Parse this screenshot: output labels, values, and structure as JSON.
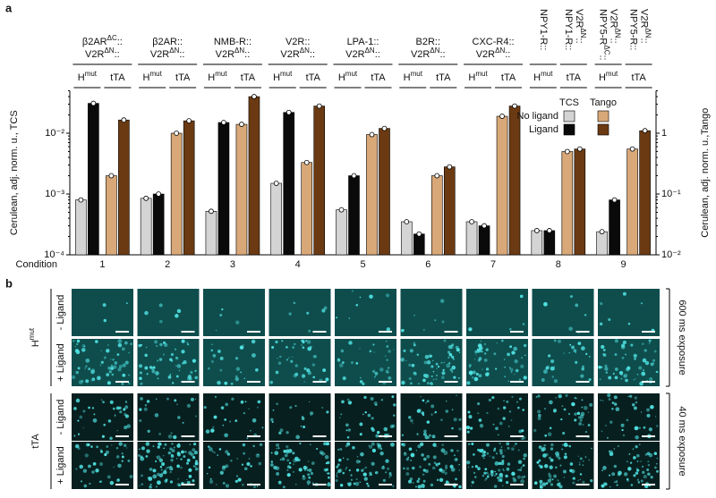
{
  "chart_data": {
    "type": "bar",
    "panel": "a",
    "ylabel": "Cerulean, adj. norm. u., TCS",
    "y2label": "Cerulean, adj. norm. u.,Tango",
    "xlabel": "Condition",
    "log_scale": true,
    "categories": [
      1,
      2,
      3,
      4,
      5,
      6,
      7,
      8,
      9
    ],
    "conditions": [
      {
        "labels": [
          [
            {
              "base": "β2AR",
              "sup": "ΔC",
              "end": "::"
            },
            {
              "base": "V2R",
              "sup": "ΔN",
              "end": "::"
            }
          ]
        ]
      },
      {
        "labels": [
          [
            {
              "base": "β2AR::"
            },
            {
              "base": "V2R",
              "sup": "ΔN",
              "end": "::"
            }
          ]
        ]
      },
      {
        "labels": [
          [
            {
              "base": "NMB-R::"
            },
            {
              "base": "V2R",
              "sup": "ΔN",
              "end": "::"
            }
          ]
        ]
      },
      {
        "labels": [
          [
            {
              "base": "V2R::"
            },
            {
              "base": "V2R",
              "sup": "ΔN",
              "end": "::"
            }
          ]
        ]
      },
      {
        "labels": [
          [
            {
              "base": "LPA-1::"
            },
            {
              "base": "V2R",
              "sup": "ΔN",
              "end": "::"
            }
          ]
        ]
      },
      {
        "labels": [
          [
            {
              "base": "B2R::"
            },
            {
              "base": "V2R",
              "sup": "ΔN",
              "end": "::"
            }
          ]
        ]
      },
      {
        "labels": [
          [
            {
              "base": "CXC-R4::"
            },
            {
              "base": "V2R",
              "sup": "ΔN",
              "end": "::"
            }
          ]
        ]
      },
      {
        "labels": [
          [
            {
              "base": "NPY1-R::"
            }
          ],
          [
            {
              "base": "NPY1-R::"
            },
            {
              "base": "V2R",
              "sup": "ΔN",
              "end": "::"
            }
          ]
        ]
      },
      {
        "labels": [
          [
            {
              "base": "NPY5-R",
              "sup": "ΔC",
              "end": "::"
            },
            {
              "base": "V2R",
              "sup": "ΔN",
              "end": "::"
            }
          ],
          [
            {
              "base": "NPY5-R::"
            },
            {
              "base": "V2R",
              "sup": "ΔN",
              "end": "::"
            }
          ]
        ]
      }
    ],
    "groups": [
      {
        "base": "H",
        "sup": "mut"
      },
      {
        "base": "tTA"
      }
    ],
    "legend_columns": [
      "TCS",
      "Tango"
    ],
    "series": [
      {
        "name": "No ligand",
        "tcs_color": "#d4d4d4",
        "tango_color": "#d9a878",
        "tcs": [
          0.0008,
          0.00085,
          0.00052,
          0.0015,
          0.00055,
          0.00035,
          0.00035,
          0.00025,
          0.00024
        ],
        "tango": [
          0.2,
          1.0,
          1.4,
          0.33,
          0.95,
          0.2,
          1.9,
          0.5,
          0.55
        ]
      },
      {
        "name": "Ligand",
        "tcs_color": "#0a0a0a",
        "tango_color": "#6b3a12",
        "tcs": [
          0.031,
          0.001,
          0.015,
          0.022,
          0.002,
          0.00022,
          0.0003,
          0.00025,
          0.0008
        ],
        "tango": [
          1.65,
          1.6,
          4.0,
          2.8,
          1.2,
          0.28,
          2.8,
          0.55,
          1.1
        ]
      }
    ],
    "ylim": [
      0.0001,
      0.05
    ],
    "yticks": [
      {
        "value": 0.0001,
        "label": "10⁻⁴"
      },
      {
        "value": 0.001,
        "label": "10⁻³"
      },
      {
        "value": 0.01,
        "label": "10⁻²"
      }
    ],
    "y2lim": [
      0.01,
      5
    ],
    "y2ticks": [
      {
        "value": 0.01,
        "label": "10⁻²"
      },
      {
        "value": 0.1,
        "label": "10⁻¹"
      },
      1
    ]
  },
  "panel_b": {
    "label": "b",
    "groups": [
      {
        "name": {
          "base": "H",
          "sup": "mut"
        },
        "rows": [
          "- Ligand",
          "+ Ligand"
        ],
        "exposure": "600 ms exposure"
      },
      {
        "name": {
          "base": "tTA"
        },
        "rows": [
          "- Ligand",
          "+ Ligand"
        ],
        "exposure": "40 ms exposure"
      }
    ]
  }
}
